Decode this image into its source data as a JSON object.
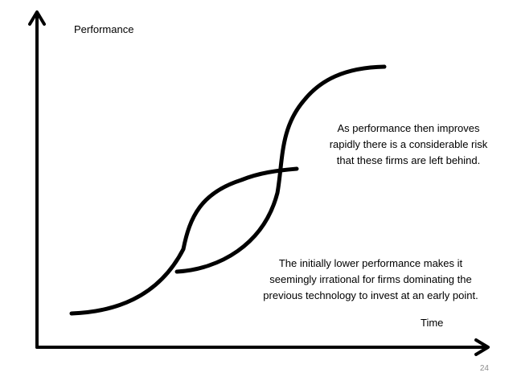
{
  "axes": {
    "y_label": "Performance",
    "x_label": "Time"
  },
  "annotations": {
    "improves": [
      "As performance then improves",
      "rapidly there is a considerable risk",
      "that these firms are left behind."
    ],
    "initial": [
      "The initially lower performance makes it",
      "seemingly irrational for firms dominating the",
      "previous technology to invest at an early point."
    ]
  },
  "page_number": "24",
  "colors": {
    "line": "#000000",
    "page_number": "#8c8c8c"
  }
}
